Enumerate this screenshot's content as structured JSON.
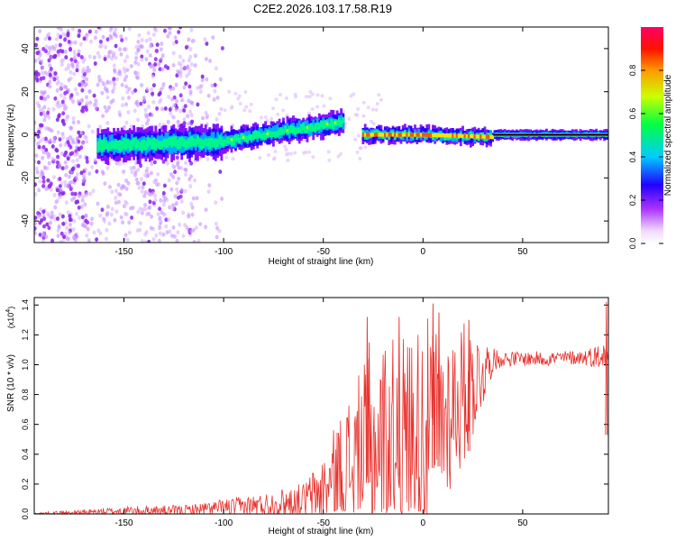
{
  "title": "C2E2.2026.103.17.58.R19",
  "chart_data": [
    {
      "type": "heatmap",
      "xlabel": "Height of straight line (km)",
      "ylabel": "Frequency (Hz)",
      "xlim": [
        -195,
        93
      ],
      "ylim": [
        -50,
        50
      ],
      "xticks": [
        -150,
        -100,
        -50,
        0,
        50
      ],
      "yticks": [
        -40,
        -20,
        0,
        20,
        40
      ],
      "grid": false,
      "colorbar": {
        "label": "Normalized spectral amplitude",
        "range": [
          0,
          1
        ],
        "ticks": [
          "0.0",
          "0.2",
          "0.4",
          "0.6",
          "0.8"
        ],
        "colormap": [
          "#ffffff",
          "#d9a6ff",
          "#8800ff",
          "#0000ff",
          "#00ffff",
          "#00ff00",
          "#ffff00",
          "#ff8800",
          "#ff0000",
          "#ff0066"
        ]
      },
      "ridge": {
        "segments": [
          {
            "x": [
              -163,
              -100
            ],
            "freq": [
              -5,
              -3
            ]
          },
          {
            "x": [
              -100,
              -40
            ],
            "freq": [
              -3,
              6
            ]
          },
          {
            "x": [
              -30,
              0
            ],
            "freq": [
              0,
              0
            ]
          },
          {
            "x": [
              0,
              35
            ],
            "freq": [
              0,
              -1
            ]
          },
          {
            "x": [
              35,
              93
            ],
            "freq": [
              0,
              0
            ]
          }
        ]
      }
    },
    {
      "type": "line",
      "xlabel": "Height of straight line (km)",
      "ylabel": "SNR (10 * v/v)",
      "ylabel_multiplier": "(x10",
      "ylabel_exponent": "4",
      "ylabel_multiplier_close": ")",
      "xlim": [
        -195,
        93
      ],
      "ylim": [
        0,
        1.45
      ],
      "xticks": [
        -150,
        -100,
        -50,
        0,
        50
      ],
      "yticks": [
        "0.0",
        "0.2",
        "0.4",
        "0.6",
        "0.8",
        "1.0",
        "1.2",
        "1.4"
      ],
      "grid": false,
      "series": [
        {
          "color": "#e8302b",
          "envelope": {
            "x": [
              -195,
              -170,
              -150,
              -120,
              -100,
              -80,
              -60,
              -50,
              -40,
              -30,
              -20,
              -10,
              0,
              10,
              20,
              30,
              35,
              40,
              60,
              80,
              93
            ],
            "base": [
              0.0,
              0.01,
              0.02,
              0.02,
              0.04,
              0.06,
              0.09,
              0.15,
              0.28,
              0.4,
              0.48,
              0.52,
              0.58,
              0.65,
              0.8,
              0.95,
              1.03,
              1.04,
              1.04,
              1.05,
              1.06
            ],
            "amp": [
              0.01,
              0.02,
              0.03,
              0.04,
              0.06,
              0.08,
              0.12,
              0.25,
              0.45,
              0.6,
              0.7,
              0.7,
              0.75,
              0.6,
              0.5,
              0.25,
              0.08,
              0.05,
              0.05,
              0.05,
              0.1
            ]
          },
          "peaks": [
            {
              "x": -28,
              "y": 1.32
            },
            {
              "x": -27,
              "y": 1.15
            },
            {
              "x": -12,
              "y": 1.32
            },
            {
              "x": 5,
              "y": 1.41
            },
            {
              "x": 8,
              "y": 1.35
            },
            {
              "x": 23,
              "y": 1.3
            },
            {
              "x": 92,
              "y": 1.42
            }
          ]
        }
      ]
    }
  ]
}
